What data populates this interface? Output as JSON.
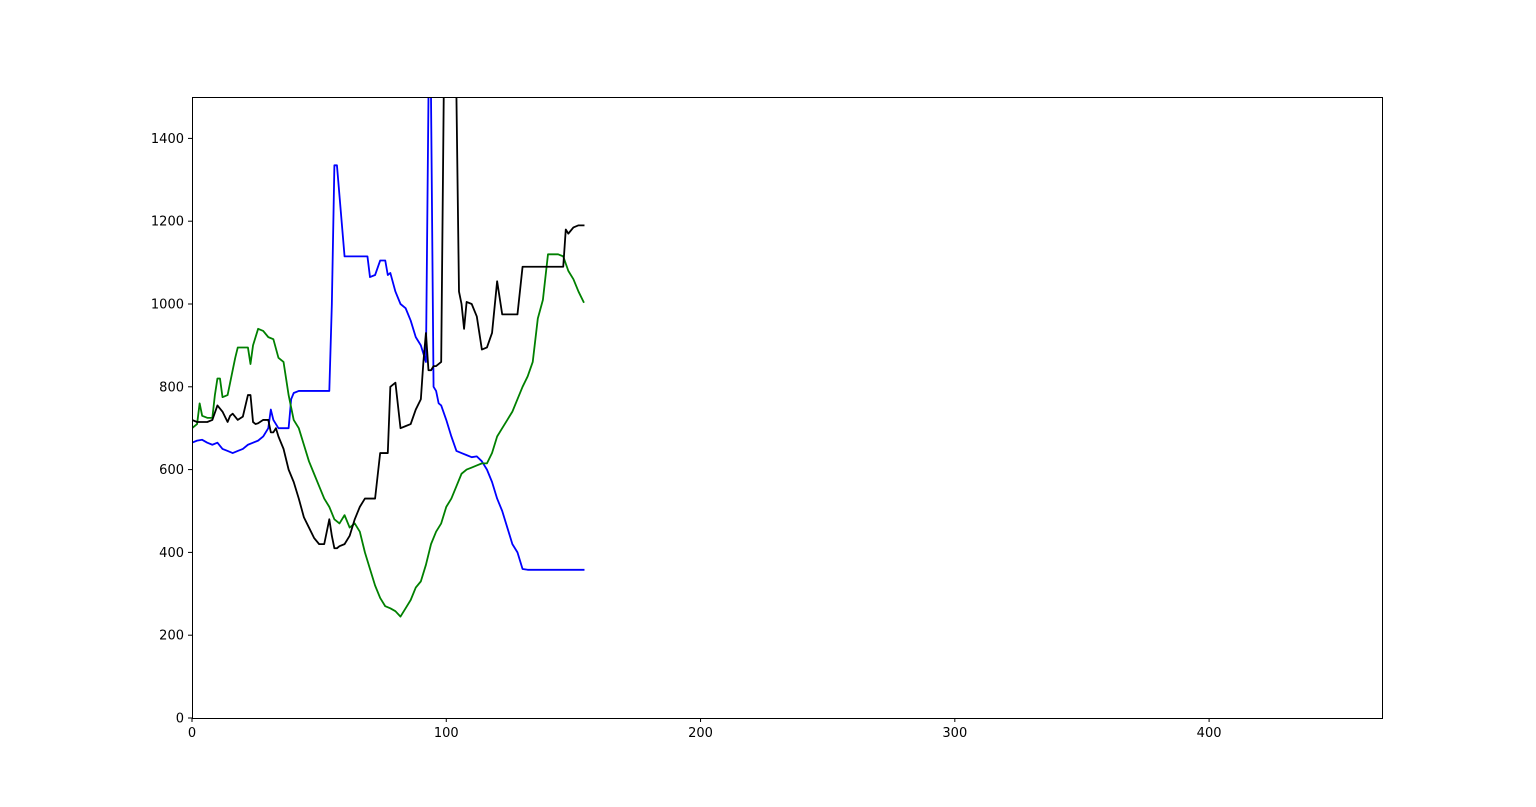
{
  "chart_data": {
    "type": "line",
    "title": "",
    "xlabel": "",
    "ylabel": "",
    "xlim": [
      0,
      468
    ],
    "ylim": [
      0,
      1500
    ],
    "x_ticks": [
      0,
      100,
      200,
      300,
      400
    ],
    "y_ticks": [
      0,
      200,
      400,
      600,
      800,
      1000,
      1200,
      1400
    ],
    "x_tick_labels": [
      "0",
      "100",
      "200",
      "300",
      "400"
    ],
    "y_tick_labels": [
      "0",
      "200",
      "400",
      "600",
      "800",
      "1000",
      "1200",
      "1400"
    ],
    "grid": false,
    "legend": "none",
    "series": [
      {
        "color": "#0000ff",
        "x": [
          0,
          2,
          4,
          6,
          8,
          10,
          12,
          14,
          16,
          18,
          20,
          22,
          24,
          26,
          28,
          30,
          31,
          32,
          34,
          36,
          38,
          39,
          40,
          42,
          44,
          46,
          50,
          54,
          55,
          56,
          57,
          60,
          65,
          69,
          70,
          72,
          74,
          76,
          77,
          78,
          80,
          82,
          84,
          86,
          88,
          90,
          92,
          93,
          94,
          95,
          96,
          97,
          98,
          100,
          102,
          104,
          106,
          108,
          110,
          112,
          114,
          116,
          118,
          120,
          122,
          124,
          126,
          128,
          130,
          132,
          134,
          140,
          150,
          154
        ],
        "y": [
          665,
          670,
          672,
          665,
          660,
          665,
          650,
          645,
          640,
          645,
          650,
          660,
          665,
          670,
          680,
          700,
          745,
          720,
          700,
          700,
          700,
          770,
          785,
          790,
          790,
          790,
          790,
          790,
          1000,
          1335,
          1335,
          1115,
          1115,
          1115,
          1065,
          1070,
          1105,
          1105,
          1070,
          1075,
          1030,
          1000,
          990,
          960,
          920,
          900,
          860,
          1500,
          1500,
          800,
          790,
          760,
          755,
          720,
          680,
          645,
          640,
          635,
          630,
          632,
          620,
          600,
          570,
          530,
          500,
          460,
          420,
          400,
          360,
          358,
          358,
          358,
          358,
          358
        ]
      },
      {
        "color": "#008000",
        "x": [
          0,
          2,
          3,
          4,
          6,
          8,
          9,
          10,
          11,
          12,
          14,
          16,
          17,
          18,
          20,
          22,
          23,
          24,
          26,
          28,
          30,
          32,
          34,
          36,
          38,
          40,
          42,
          44,
          46,
          48,
          50,
          52,
          54,
          56,
          58,
          60,
          62,
          64,
          66,
          68,
          70,
          72,
          74,
          76,
          78,
          80,
          82,
          84,
          86,
          88,
          90,
          92,
          94,
          96,
          98,
          100,
          102,
          104,
          106,
          108,
          110,
          112,
          114,
          116,
          118,
          120,
          122,
          124,
          126,
          128,
          130,
          132,
          134,
          136,
          138,
          140,
          142,
          144,
          146,
          148,
          150,
          152,
          154
        ],
        "y": [
          700,
          710,
          760,
          730,
          725,
          725,
          780,
          820,
          820,
          775,
          780,
          840,
          870,
          895,
          895,
          895,
          855,
          900,
          940,
          935,
          920,
          915,
          870,
          860,
          780,
          720,
          700,
          660,
          620,
          590,
          560,
          530,
          510,
          480,
          470,
          490,
          460,
          470,
          450,
          400,
          360,
          320,
          290,
          270,
          265,
          258,
          245,
          265,
          285,
          315,
          330,
          370,
          420,
          450,
          470,
          510,
          530,
          560,
          590,
          600,
          605,
          610,
          615,
          615,
          640,
          680,
          700,
          720,
          740,
          770,
          800,
          825,
          860,
          965,
          1010,
          1120,
          1120,
          1120,
          1115,
          1080,
          1060,
          1030,
          1005
        ]
      },
      {
        "color": "#000000",
        "x": [
          0,
          2,
          4,
          6,
          8,
          10,
          12,
          14,
          15,
          16,
          18,
          20,
          22,
          23,
          24,
          25,
          26,
          28,
          30,
          31,
          32,
          33,
          34,
          36,
          38,
          40,
          42,
          44,
          46,
          48,
          50,
          52,
          54,
          55,
          56,
          57,
          58,
          60,
          62,
          64,
          66,
          68,
          70,
          72,
          74,
          76,
          77,
          78,
          80,
          82,
          84,
          86,
          88,
          90,
          91,
          92,
          93,
          94,
          95,
          96,
          98,
          99,
          100,
          101,
          102,
          104,
          105,
          106,
          107,
          108,
          110,
          112,
          114,
          116,
          118,
          120,
          122,
          124,
          126,
          128,
          130,
          132,
          134,
          136,
          138,
          140,
          142,
          144,
          146,
          147,
          148,
          150,
          152,
          154
        ],
        "y": [
          720,
          715,
          715,
          715,
          720,
          755,
          740,
          715,
          730,
          735,
          720,
          728,
          780,
          780,
          715,
          710,
          712,
          720,
          720,
          690,
          690,
          700,
          680,
          650,
          600,
          570,
          530,
          485,
          460,
          435,
          420,
          420,
          480,
          440,
          410,
          410,
          415,
          420,
          440,
          480,
          510,
          530,
          530,
          530,
          640,
          640,
          640,
          800,
          810,
          700,
          705,
          710,
          745,
          770,
          860,
          930,
          840,
          840,
          850,
          850,
          860,
          1500,
          1500,
          1500,
          1500,
          1500,
          1030,
          1000,
          940,
          1005,
          1000,
          970,
          890,
          895,
          930,
          1055,
          975,
          975,
          975,
          975,
          1090,
          1090,
          1090,
          1090,
          1090,
          1090,
          1090,
          1090,
          1090,
          1180,
          1170,
          1185,
          1190,
          1190
        ]
      }
    ]
  }
}
